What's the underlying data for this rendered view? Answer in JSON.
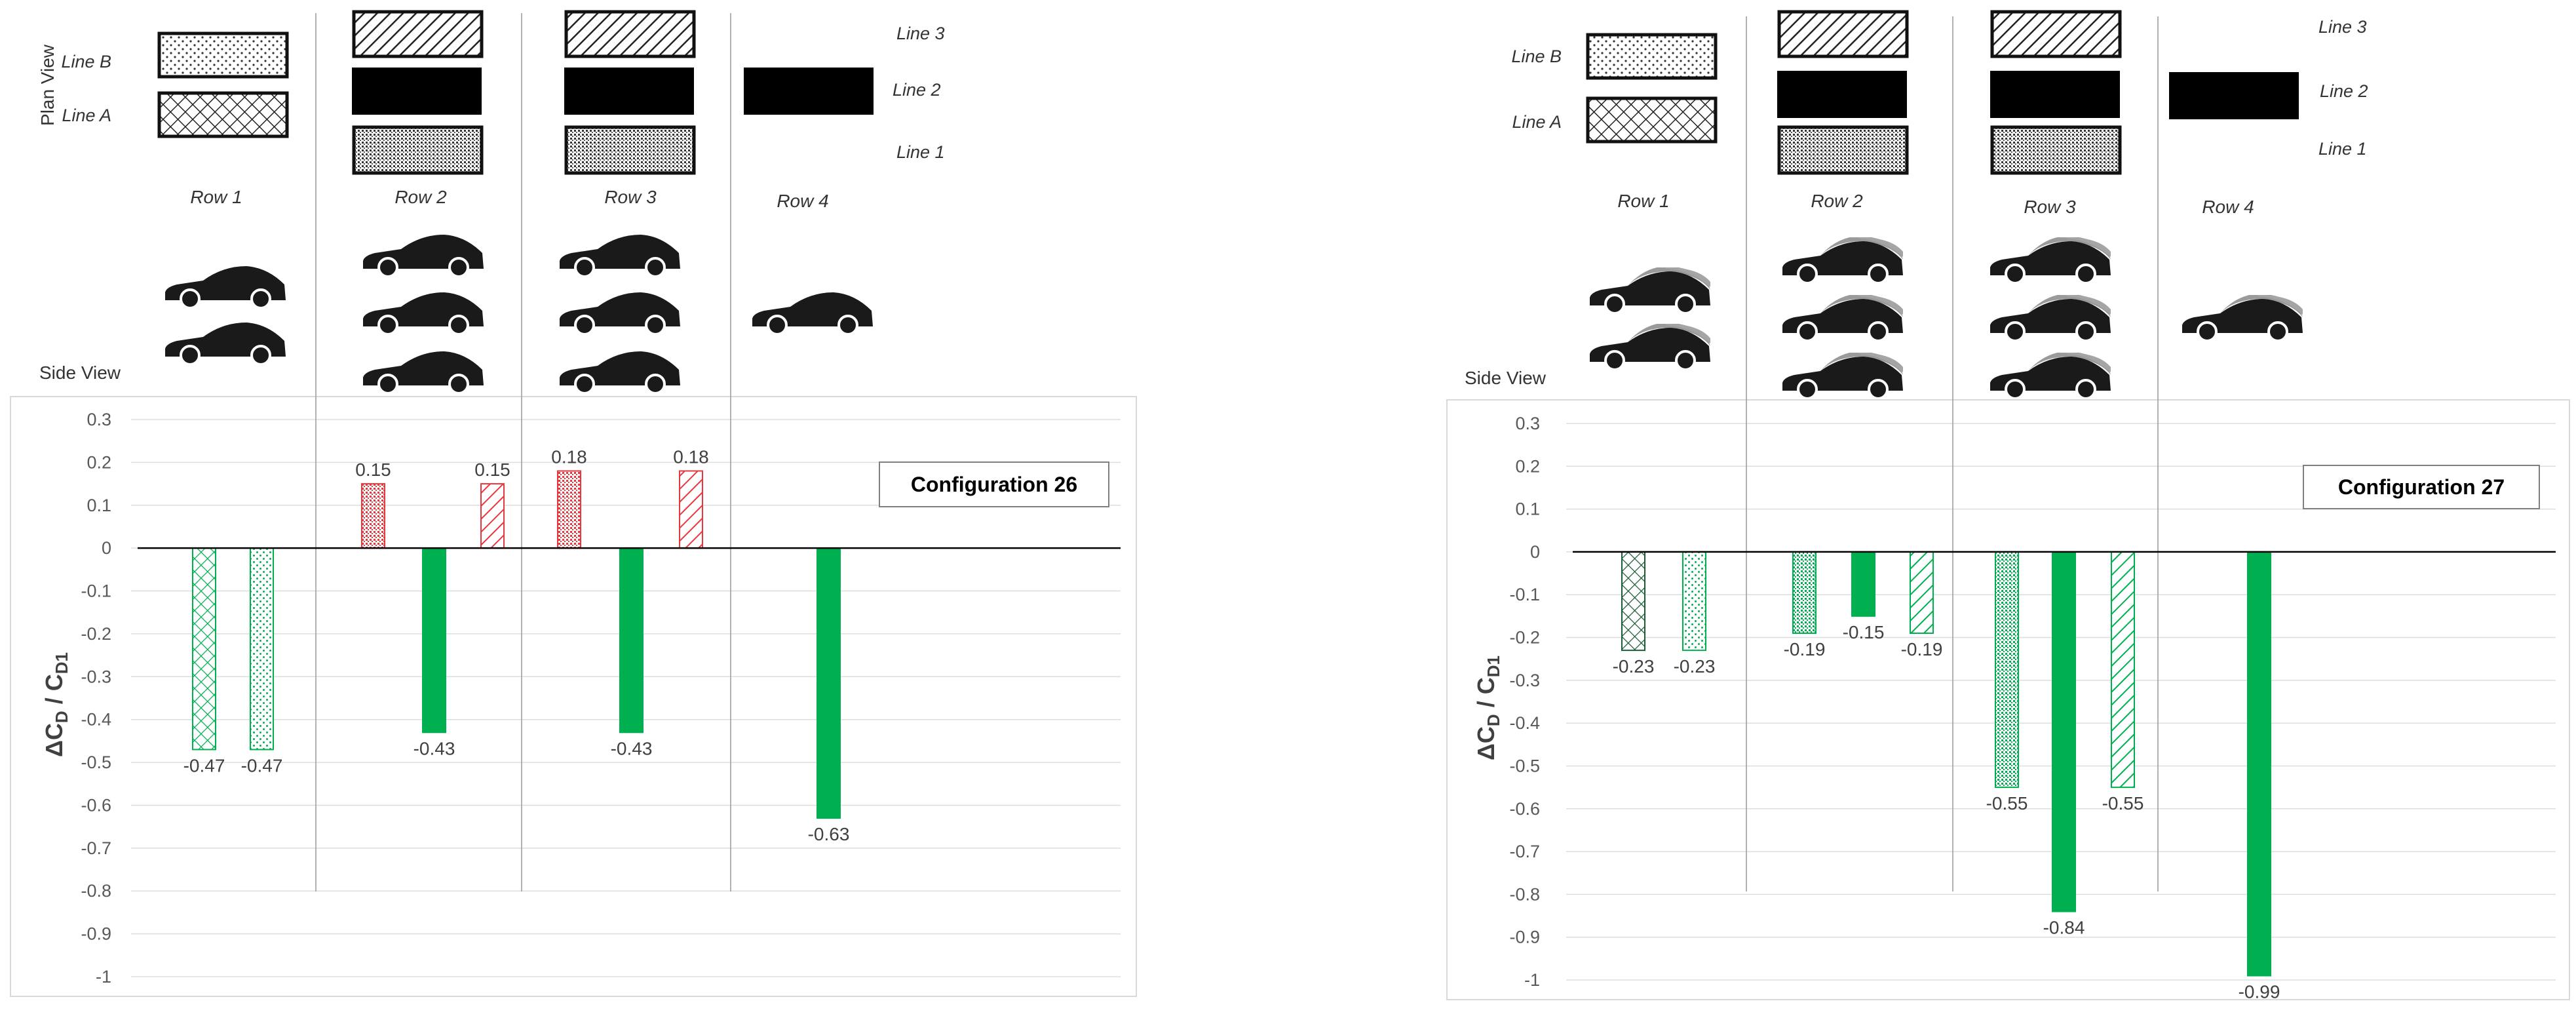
{
  "labels": {
    "plan_view": "Plan View",
    "side_view": "Side View",
    "lines": [
      "Line 3",
      "Line 2",
      "Line 1"
    ],
    "line_b": "Line B",
    "line_a": "Line A",
    "rows": [
      "Row 1",
      "Row 2",
      "Row 3",
      "Row 4"
    ]
  },
  "colors": {
    "green": "#00b050",
    "red": "#e8383d",
    "black": "#111111",
    "grid": "#dddddd",
    "axis_text": "#595959"
  },
  "chart_data": [
    {
      "type": "bar",
      "title": "Configuration 26",
      "ylabel": "ΔCD / CD1",
      "ylim": [
        -1,
        0.3
      ],
      "yticks": [
        "0.3",
        "0.2",
        "0.1",
        "0",
        "-0.1",
        "-0.2",
        "-0.3",
        "-0.4",
        "-0.5",
        "-0.6",
        "-0.7",
        "-0.8",
        "-0.9",
        "-1"
      ],
      "bars": [
        {
          "row": "Row 1",
          "line": "Line A",
          "value": -0.47,
          "label": "-0.47",
          "color": "green",
          "pattern": "crosshatch"
        },
        {
          "row": "Row 1",
          "line": "Line B",
          "value": -0.47,
          "label": "-0.47",
          "color": "green",
          "pattern": "dots"
        },
        {
          "row": "Row 2",
          "line": "Line 1",
          "value": 0.15,
          "label": "0.15",
          "color": "red",
          "pattern": "dense-dots"
        },
        {
          "row": "Row 2",
          "line": "Line 2",
          "value": -0.43,
          "label": "-0.43",
          "color": "green",
          "pattern": "solid"
        },
        {
          "row": "Row 2",
          "line": "Line 3",
          "value": 0.15,
          "label": "0.15",
          "color": "red",
          "pattern": "diagonal"
        },
        {
          "row": "Row 3",
          "line": "Line 1",
          "value": 0.18,
          "label": "0.18",
          "color": "red",
          "pattern": "dense-dots"
        },
        {
          "row": "Row 3",
          "line": "Line 2",
          "value": -0.43,
          "label": "-0.43",
          "color": "green",
          "pattern": "solid"
        },
        {
          "row": "Row 3",
          "line": "Line 3",
          "value": 0.18,
          "label": "0.18",
          "color": "red",
          "pattern": "diagonal"
        },
        {
          "row": "Row 4",
          "line": "Line 2",
          "value": -0.63,
          "label": "-0.63",
          "color": "green",
          "pattern": "solid"
        }
      ]
    },
    {
      "type": "bar",
      "title": "Configuration 27",
      "ylabel": "ΔCD / CD1",
      "ylim": [
        -1,
        0.3
      ],
      "yticks": [
        "0.3",
        "0.2",
        "0.1",
        "0",
        "-0.1",
        "-0.2",
        "-0.3",
        "-0.4",
        "-0.5",
        "-0.6",
        "-0.7",
        "-0.8",
        "-0.9",
        "-1"
      ],
      "bars": [
        {
          "row": "Row 1",
          "line": "Line A",
          "value": -0.23,
          "label": "-0.23",
          "color": "green",
          "pattern": "crosshatch-dark"
        },
        {
          "row": "Row 1",
          "line": "Line B",
          "value": -0.23,
          "label": "-0.23",
          "color": "green",
          "pattern": "dots"
        },
        {
          "row": "Row 2",
          "line": "Line 1",
          "value": -0.19,
          "label": "-0.19",
          "color": "green",
          "pattern": "dense-dots"
        },
        {
          "row": "Row 2",
          "line": "Line 2",
          "value": -0.15,
          "label": "-0.15",
          "color": "green",
          "pattern": "solid"
        },
        {
          "row": "Row 2",
          "line": "Line 3",
          "value": -0.19,
          "label": "-0.19",
          "color": "green",
          "pattern": "diagonal"
        },
        {
          "row": "Row 3",
          "line": "Line 1",
          "value": -0.55,
          "label": "-0.55",
          "color": "green",
          "pattern": "dense-dots"
        },
        {
          "row": "Row 3",
          "line": "Line 2",
          "value": -0.84,
          "label": "-0.84",
          "color": "green",
          "pattern": "solid"
        },
        {
          "row": "Row 3",
          "line": "Line 3",
          "value": -0.55,
          "label": "-0.55",
          "color": "green",
          "pattern": "diagonal"
        },
        {
          "row": "Row 4",
          "line": "Line 2",
          "value": -0.99,
          "label": "-0.99",
          "color": "green",
          "pattern": "solid"
        }
      ]
    }
  ]
}
